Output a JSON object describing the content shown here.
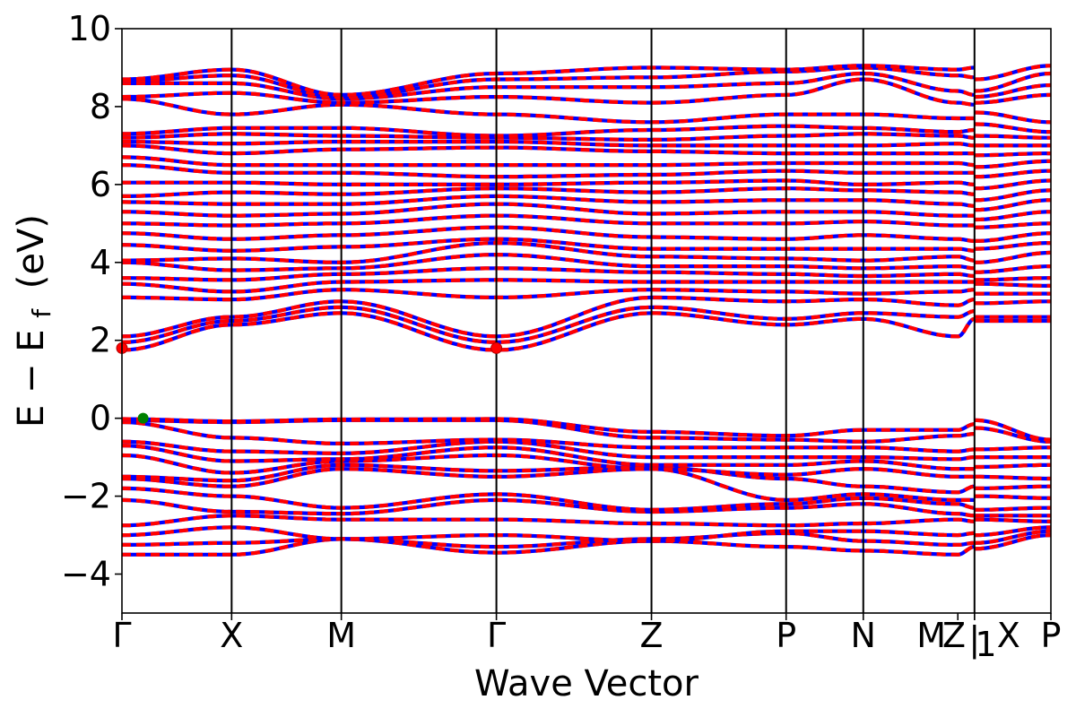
{
  "chart_data": {
    "type": "line",
    "xlabel": "Wave Vector",
    "ylabel": {
      "base": "E − E",
      "sub": "f",
      "unit": "(eV)"
    },
    "ylim": [
      -5,
      10
    ],
    "yticks": [
      -4,
      -2,
      0,
      2,
      4,
      6,
      8,
      10
    ],
    "ytick_labels": [
      "−4",
      "−2",
      "0",
      "2",
      "4",
      "6",
      "8",
      "10"
    ],
    "xlim": [
      0,
      12.28
    ],
    "kpoints": [
      {
        "label": "Γ",
        "x": 0
      },
      {
        "label": "X",
        "x": 1.45
      },
      {
        "label": "M",
        "x": 2.9
      },
      {
        "label": "Γ",
        "x": 4.95
      },
      {
        "label": "Z",
        "x": 7.0
      },
      {
        "label": "P",
        "x": 8.78
      },
      {
        "label": "N",
        "x": 9.8
      },
      {
        "label": "M",
        "x": 11.05
      },
      {
        "label": "Z",
        "x": 11.27
      },
      {
        "label": "|",
        "x": 11.27
      },
      {
        "label": "1",
        "x": 11.27
      },
      {
        "label": "X",
        "x": 11.27
      },
      {
        "label": "P",
        "x": 12.28
      }
    ],
    "vlines": [
      1.45,
      2.9,
      4.95,
      7.0,
      8.78,
      9.8,
      11.27
    ],
    "colors": {
      "spin_up": "#ff0000",
      "spin_down": "#0000ff",
      "vbm": "#008000",
      "cbm": "#ff0000"
    },
    "vbm": {
      "x": 0.28,
      "y": 0.0
    },
    "cbm": [
      {
        "x": 0.0,
        "y": 1.8
      },
      {
        "x": 4.95,
        "y": 1.8
      }
    ],
    "series": [
      {
        "values": [
          -3.5,
          -3.5,
          -3.1,
          -3.45,
          -3.15,
          -3.3,
          -3.4,
          -3.5,
          -3.3,
          -3.35,
          -3.0
        ]
      },
      {
        "values": [
          -3.25,
          -3.2,
          -3.1,
          -3.3,
          -3.1,
          -2.95,
          -3.15,
          -3.25,
          -3.2,
          -3.2,
          -2.9
        ]
      },
      {
        "values": [
          -3.0,
          -2.8,
          -3.1,
          -3.0,
          -3.15,
          -2.9,
          -2.9,
          -3.0,
          -2.95,
          -3.0,
          -2.8
        ]
      },
      {
        "values": [
          -2.75,
          -2.5,
          -2.6,
          -2.6,
          -2.7,
          -2.75,
          -2.7,
          -2.6,
          -2.65,
          -2.6,
          -2.65
        ]
      },
      {
        "values": [
          -2.1,
          -2.4,
          -2.45,
          -2.1,
          -2.4,
          -2.3,
          -2.2,
          -2.45,
          -2.5,
          -2.5,
          -2.5
        ]
      },
      {
        "values": [
          -1.8,
          -2.0,
          -2.3,
          -1.95,
          -2.35,
          -2.2,
          -2.05,
          -2.2,
          -2.3,
          -2.35,
          -2.3
        ]
      },
      {
        "values": [
          -1.55,
          -1.75,
          -1.3,
          -1.5,
          -1.3,
          -2.1,
          -1.95,
          -2.1,
          -2.1,
          -2.0,
          -2.05
        ]
      },
      {
        "values": [
          -1.5,
          -1.6,
          -1.2,
          -1.35,
          -1.25,
          -1.55,
          -1.75,
          -1.9,
          -1.75,
          -1.8,
          -1.75
        ]
      },
      {
        "values": [
          -0.95,
          -1.4,
          -1.1,
          -0.95,
          -1.3,
          -1.45,
          -1.3,
          -1.5,
          -1.5,
          -1.5,
          -1.55
        ]
      },
      {
        "values": [
          -0.7,
          -1.1,
          -1.05,
          -0.75,
          -1.2,
          -1.2,
          -1.1,
          -1.3,
          -1.3,
          -1.25,
          -1.2
        ]
      },
      {
        "values": [
          -0.6,
          -0.85,
          -0.9,
          -0.6,
          -1.0,
          -1.0,
          -1.0,
          -1.05,
          -1.0,
          -1.0,
          -1.0
        ]
      },
      {
        "values": [
          -0.1,
          -0.5,
          -0.65,
          -0.55,
          -0.75,
          -0.75,
          -0.75,
          -0.85,
          -0.8,
          -0.8,
          -0.75
        ]
      },
      {
        "values": [
          -0.05,
          -0.1,
          -0.05,
          -0.05,
          -0.5,
          -0.55,
          -0.6,
          -0.45,
          -0.4,
          -0.25,
          -0.6
        ]
      },
      {
        "values": [
          -0.02,
          -0.08,
          -0.03,
          -0.02,
          -0.35,
          -0.45,
          -0.3,
          -0.3,
          -0.15,
          -0.05,
          -0.55
        ]
      },
      {
        "values": [
          1.75,
          2.4,
          2.7,
          1.75,
          2.7,
          2.4,
          2.55,
          2.1,
          2.55,
          2.5,
          2.5
        ]
      },
      {
        "values": [
          1.95,
          2.5,
          2.85,
          1.95,
          2.85,
          2.55,
          2.7,
          2.6,
          2.75,
          2.6,
          2.6
        ]
      },
      {
        "values": [
          2.1,
          2.6,
          3.0,
          2.1,
          3.1,
          3.0,
          3.05,
          2.9,
          3.05,
          2.95,
          3.0
        ]
      },
      {
        "values": [
          3.1,
          3.05,
          3.3,
          3.1,
          3.3,
          3.25,
          3.2,
          3.25,
          3.3,
          3.2,
          3.2
        ]
      },
      {
        "values": [
          3.45,
          3.25,
          3.5,
          3.55,
          3.5,
          3.5,
          3.5,
          3.5,
          3.5,
          3.45,
          3.4
        ]
      },
      {
        "values": [
          3.6,
          3.55,
          3.7,
          3.85,
          3.75,
          3.7,
          3.65,
          3.7,
          3.65,
          3.55,
          3.6
        ]
      },
      {
        "values": [
          4.0,
          3.8,
          3.85,
          4.2,
          3.9,
          3.9,
          3.85,
          3.9,
          3.85,
          3.75,
          3.9
        ]
      },
      {
        "values": [
          4.05,
          4.1,
          4.0,
          4.5,
          4.15,
          4.1,
          4.05,
          4.15,
          4.05,
          4.0,
          4.25
        ]
      },
      {
        "values": [
          4.45,
          4.3,
          4.4,
          4.6,
          4.35,
          4.35,
          4.35,
          4.35,
          4.3,
          4.35,
          4.5
        ]
      },
      {
        "values": [
          4.75,
          4.6,
          4.7,
          4.9,
          4.65,
          4.6,
          4.7,
          4.6,
          4.55,
          4.55,
          4.75
        ]
      },
      {
        "values": [
          5.0,
          4.95,
          5.0,
          5.2,
          5.0,
          5.0,
          5.05,
          4.95,
          4.95,
          4.9,
          5.0
        ]
      },
      {
        "values": [
          5.3,
          5.2,
          5.25,
          5.5,
          5.25,
          5.3,
          5.3,
          5.2,
          5.2,
          5.1,
          5.3
        ]
      },
      {
        "values": [
          5.55,
          5.5,
          5.5,
          5.7,
          5.55,
          5.6,
          5.6,
          5.5,
          5.45,
          5.35,
          5.6
        ]
      },
      {
        "values": [
          5.7,
          5.8,
          5.75,
          5.9,
          5.8,
          5.9,
          5.85,
          5.8,
          5.75,
          5.6,
          5.85
        ]
      },
      {
        "values": [
          6.05,
          6.05,
          6.0,
          6.0,
          6.05,
          6.1,
          6.0,
          6.05,
          6.0,
          5.9,
          6.1
        ]
      },
      {
        "values": [
          6.5,
          6.3,
          6.3,
          6.2,
          6.25,
          6.35,
          6.3,
          6.3,
          6.3,
          6.2,
          6.35
        ]
      },
      {
        "values": [
          6.7,
          6.5,
          6.5,
          6.5,
          6.5,
          6.55,
          6.55,
          6.55,
          6.5,
          6.45,
          6.6
        ]
      },
      {
        "values": [
          7.0,
          6.8,
          6.9,
          6.95,
          6.85,
          6.8,
          6.8,
          6.8,
          6.8,
          6.75,
          6.8
        ]
      },
      {
        "values": [
          7.1,
          7.05,
          7.1,
          7.1,
          7.0,
          7.0,
          7.0,
          7.05,
          7.0,
          7.0,
          7.0
        ]
      },
      {
        "values": [
          7.2,
          7.3,
          7.25,
          7.2,
          7.15,
          7.25,
          7.3,
          7.25,
          7.2,
          7.25,
          7.2
        ]
      },
      {
        "values": [
          7.3,
          7.45,
          7.45,
          7.25,
          7.4,
          7.5,
          7.45,
          7.35,
          7.4,
          7.55,
          7.35
        ]
      },
      {
        "values": [
          8.2,
          7.8,
          8.05,
          7.8,
          7.6,
          7.8,
          7.8,
          7.7,
          7.7,
          7.85,
          7.6
        ]
      },
      {
        "values": [
          8.25,
          8.35,
          8.1,
          8.25,
          8.1,
          8.3,
          8.7,
          8.1,
          8.05,
          8.1,
          8.3
        ]
      },
      {
        "values": [
          8.6,
          8.6,
          8.2,
          8.5,
          8.5,
          8.6,
          8.85,
          8.4,
          8.3,
          8.25,
          8.55
        ]
      },
      {
        "values": [
          8.65,
          8.8,
          8.25,
          8.7,
          8.75,
          8.9,
          9.0,
          8.8,
          8.75,
          8.4,
          8.85
        ]
      },
      {
        "values": [
          8.7,
          8.95,
          8.3,
          8.85,
          9.0,
          8.95,
          9.05,
          8.95,
          9.0,
          8.7,
          9.05
        ]
      }
    ]
  }
}
